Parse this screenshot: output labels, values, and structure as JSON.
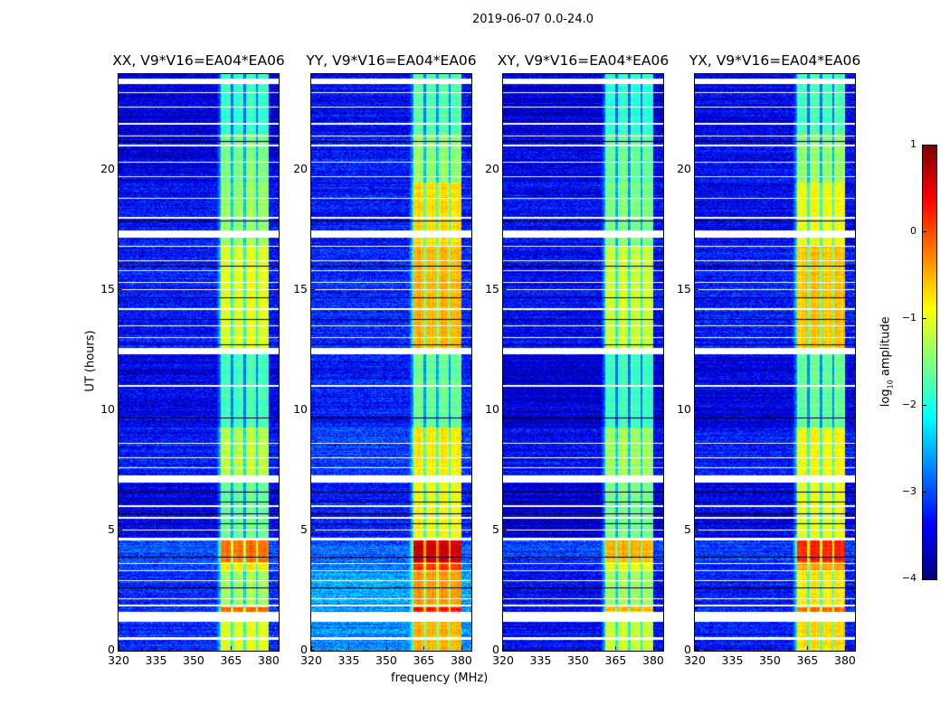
{
  "chart_data": {
    "type": "heatmap",
    "suptitle": "2019-06-07 0.0-24.0",
    "xlabel": "frequency (MHz)",
    "ylabel": "UT (hours)",
    "xlim": [
      320,
      384
    ],
    "ylim": [
      0,
      24
    ],
    "xticks": [
      320,
      335,
      350,
      365,
      380
    ],
    "yticks": [
      0,
      5,
      10,
      15,
      20
    ],
    "colorbar": {
      "label": "log10 amplitude",
      "label_main": "log",
      "label_sub": "10",
      "label_rest": " amplitude",
      "range": [
        -4,
        1
      ],
      "ticks": [
        "1",
        "0",
        "−1",
        "−2",
        "−3",
        "−4"
      ],
      "tick_values": [
        1,
        0,
        -1,
        -2,
        -3,
        -4
      ],
      "colormap": "jet"
    },
    "rfi_band_mhz": [
      361,
      380
    ],
    "band_dips_mhz": [
      365.5,
      370.5,
      375.3
    ],
    "flagged_hours": [
      [
        0.45,
        0.55
      ],
      [
        1.2,
        1.6
      ],
      [
        1.85,
        1.9
      ],
      [
        2.15,
        2.2
      ],
      [
        2.9,
        2.95
      ],
      [
        3.3,
        3.35
      ],
      [
        3.6,
        3.65
      ],
      [
        4.6,
        4.7
      ],
      [
        5.0,
        5.05
      ],
      [
        5.5,
        5.55
      ],
      [
        6.0,
        6.05
      ],
      [
        7.0,
        7.3
      ],
      [
        7.6,
        7.65
      ],
      [
        8.0,
        8.05
      ],
      [
        8.6,
        8.65
      ],
      [
        11.0,
        11.05
      ],
      [
        12.35,
        12.6
      ],
      [
        13.0,
        13.05
      ],
      [
        13.5,
        13.55
      ],
      [
        14.2,
        14.25
      ],
      [
        15.0,
        15.05
      ],
      [
        15.3,
        15.35
      ],
      [
        15.8,
        15.85
      ],
      [
        16.2,
        16.25
      ],
      [
        16.8,
        16.85
      ],
      [
        17.2,
        17.5
      ],
      [
        18.0,
        18.05
      ],
      [
        18.8,
        18.85
      ],
      [
        19.7,
        19.75
      ],
      [
        20.3,
        20.35
      ],
      [
        21.0,
        21.05
      ],
      [
        21.4,
        21.45
      ],
      [
        21.9,
        21.95
      ],
      [
        22.6,
        22.65
      ],
      [
        23.2,
        23.25
      ],
      [
        23.6,
        23.8
      ]
    ],
    "dark_hours": [
      2.6,
      3.9,
      5.3,
      5.7,
      6.2,
      6.6,
      9.7,
      12.75,
      13.8,
      14.7,
      16.0,
      17.9,
      21.2
    ],
    "panels": [
      {
        "title": "XX, V9*V16=EA04*EA06",
        "segments": [
          [
            0,
            1.2,
            -3.2,
            -1.0
          ],
          [
            1.6,
            1.8,
            -3.1,
            -0.1
          ],
          [
            1.8,
            3.3,
            -3.2,
            -1.3
          ],
          [
            3.3,
            3.7,
            -3.1,
            -0.8
          ],
          [
            3.7,
            4.6,
            -3.0,
            -0.2
          ],
          [
            4.7,
            7.3,
            -3.5,
            -1.6
          ],
          [
            7.3,
            9.3,
            -3.3,
            -1.2
          ],
          [
            9.3,
            12.4,
            -3.5,
            -1.8
          ],
          [
            12.6,
            16.8,
            -3.3,
            -1.0
          ],
          [
            16.8,
            19.5,
            -3.4,
            -1.4
          ],
          [
            19.5,
            21.5,
            -3.5,
            -1.5
          ],
          [
            21.5,
            24,
            -3.6,
            -1.9
          ]
        ]
      },
      {
        "title": "YY, V9*V16=EA04*EA06",
        "segments": [
          [
            0,
            1.2,
            -2.7,
            -0.5
          ],
          [
            1.6,
            1.8,
            -2.7,
            0.3
          ],
          [
            1.8,
            3.3,
            -2.6,
            -0.4
          ],
          [
            3.3,
            3.7,
            -2.8,
            0.1
          ],
          [
            3.7,
            4.6,
            -2.9,
            0.6
          ],
          [
            4.7,
            7.3,
            -3.3,
            -0.9
          ],
          [
            7.3,
            9.3,
            -3.1,
            -0.8
          ],
          [
            9.3,
            12.4,
            -3.3,
            -1.6
          ],
          [
            12.6,
            16.8,
            -3.2,
            -0.5
          ],
          [
            16.8,
            19.5,
            -3.3,
            -0.7
          ],
          [
            19.5,
            21.5,
            -3.3,
            -1.4
          ],
          [
            21.5,
            24,
            -3.4,
            -1.7
          ]
        ]
      },
      {
        "title": "XY, V9*V16=EA04*EA06",
        "segments": [
          [
            0,
            1.2,
            -3.4,
            -1.1
          ],
          [
            1.6,
            1.8,
            -3.4,
            -0.5
          ],
          [
            1.8,
            3.3,
            -3.4,
            -1.3
          ],
          [
            3.3,
            3.7,
            -3.3,
            -0.9
          ],
          [
            3.7,
            4.6,
            -3.1,
            -0.5
          ],
          [
            4.7,
            7.3,
            -3.6,
            -1.5
          ],
          [
            7.3,
            9.3,
            -3.4,
            -1.3
          ],
          [
            9.3,
            12.4,
            -3.6,
            -1.8
          ],
          [
            12.6,
            16.8,
            -3.4,
            -1.1
          ],
          [
            16.8,
            19.5,
            -3.4,
            -1.5
          ],
          [
            19.5,
            21.5,
            -3.5,
            -1.6
          ],
          [
            21.5,
            24,
            -3.6,
            -1.9
          ]
        ]
      },
      {
        "title": "YX, V9*V16=EA04*EA06",
        "segments": [
          [
            0,
            1.2,
            -3.3,
            -0.7
          ],
          [
            1.6,
            1.8,
            -3.3,
            -0.2
          ],
          [
            1.8,
            3.3,
            -3.3,
            -0.8
          ],
          [
            3.3,
            3.7,
            -3.2,
            -0.4
          ],
          [
            3.7,
            4.6,
            -3.1,
            0.2
          ],
          [
            4.7,
            7.3,
            -3.5,
            -1.0
          ],
          [
            7.3,
            9.3,
            -3.3,
            -0.9
          ],
          [
            9.3,
            12.4,
            -3.5,
            -1.6
          ],
          [
            12.6,
            16.8,
            -3.3,
            -0.6
          ],
          [
            16.8,
            19.5,
            -3.4,
            -0.9
          ],
          [
            19.5,
            21.5,
            -3.4,
            -1.4
          ],
          [
            21.5,
            24,
            -3.5,
            -1.8
          ]
        ]
      }
    ]
  }
}
